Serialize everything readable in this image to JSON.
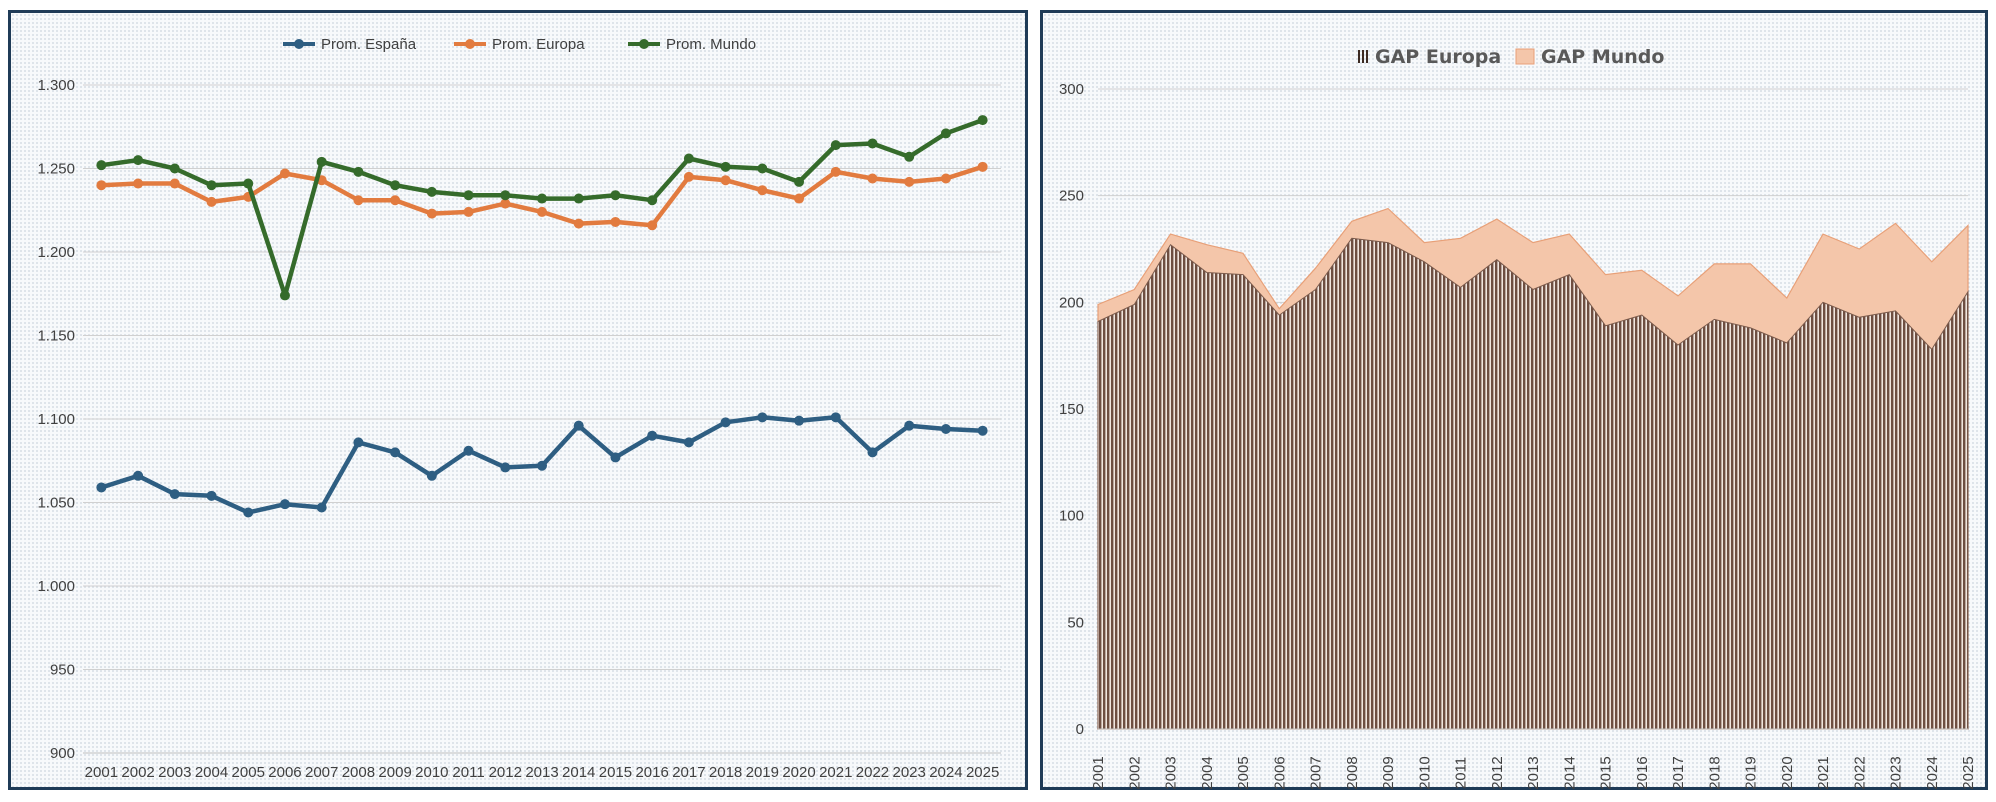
{
  "chart_data": [
    {
      "type": "line",
      "title": "",
      "xlabel": "",
      "ylabel": "",
      "categories": [
        "2001",
        "2002",
        "2003",
        "2004",
        "2005",
        "2006",
        "2007",
        "2008",
        "2009",
        "2010",
        "2011",
        "2012",
        "2013",
        "2014",
        "2015",
        "2016",
        "2017",
        "2018",
        "2019",
        "2020",
        "2021",
        "2022",
        "2023",
        "2024",
        "2025"
      ],
      "ylim": [
        900,
        1300
      ],
      "yticks": [
        900,
        950,
        1000,
        1050,
        1100,
        1150,
        1200,
        1250,
        1300
      ],
      "ytick_labels": [
        "900",
        "950",
        "1.000",
        "1.050",
        "1.100",
        "1.150",
        "1.200",
        "1.250",
        "1.300"
      ],
      "grid": true,
      "legend_position": "top-center",
      "series": [
        {
          "name": "Prom. España",
          "color": "#2e5e82",
          "values": [
            1059,
            1066,
            1055,
            1054,
            1044,
            1049,
            1047,
            1086,
            1080,
            1066,
            1081,
            1071,
            1072,
            1096,
            1077,
            1090,
            1086,
            1098,
            1101,
            1099,
            1101,
            1080,
            1096,
            1094,
            1093
          ]
        },
        {
          "name": "Prom. Europa",
          "color": "#e27b3f",
          "values": [
            1240,
            1241,
            1241,
            1230,
            1233,
            1247,
            1243,
            1231,
            1231,
            1223,
            1224,
            1229,
            1224,
            1217,
            1218,
            1216,
            1245,
            1243,
            1237,
            1232,
            1248,
            1244,
            1242,
            1244,
            1251
          ]
        },
        {
          "name": "Prom. Mundo",
          "color": "#356b2b",
          "values": [
            1252,
            1255,
            1250,
            1240,
            1241,
            1174,
            1254,
            1248,
            1240,
            1236,
            1234,
            1234,
            1232,
            1232,
            1234,
            1231,
            1256,
            1251,
            1250,
            1242,
            1264,
            1265,
            1257,
            1271,
            1279
          ]
        }
      ]
    },
    {
      "type": "area",
      "title": "",
      "xlabel": "",
      "ylabel": "",
      "categories": [
        "2001",
        "2002",
        "2003",
        "2004",
        "2005",
        "2006",
        "2007",
        "2008",
        "2009",
        "2010",
        "2011",
        "2012",
        "2013",
        "2014",
        "2015",
        "2016",
        "2017",
        "2018",
        "2019",
        "2020",
        "2021",
        "2022",
        "2023",
        "2024",
        "2025"
      ],
      "ylim": [
        0,
        300
      ],
      "yticks": [
        0,
        50,
        100,
        150,
        200,
        250,
        300
      ],
      "ytick_labels": [
        "0",
        "50",
        "100",
        "150",
        "200",
        "250",
        "300"
      ],
      "grid": true,
      "legend_position": "top-center",
      "series": [
        {
          "name": "GAP Europa",
          "color": "#7a5a4c",
          "fill": "hatched",
          "values": [
            191,
            199,
            227,
            214,
            213,
            194,
            206,
            230,
            228,
            219,
            207,
            220,
            206,
            213,
            189,
            194,
            180,
            192,
            188,
            181,
            200,
            193,
            196,
            178,
            205
          ]
        },
        {
          "name": "GAP Mundo",
          "color": "#e8a078",
          "fill": "#f4c6aa",
          "values": [
            199,
            206,
            232,
            227,
            223,
            197,
            216,
            238,
            244,
            228,
            230,
            239,
            228,
            232,
            213,
            215,
            203,
            218,
            218,
            202,
            232,
            225,
            237,
            219,
            236
          ]
        }
      ]
    }
  ]
}
